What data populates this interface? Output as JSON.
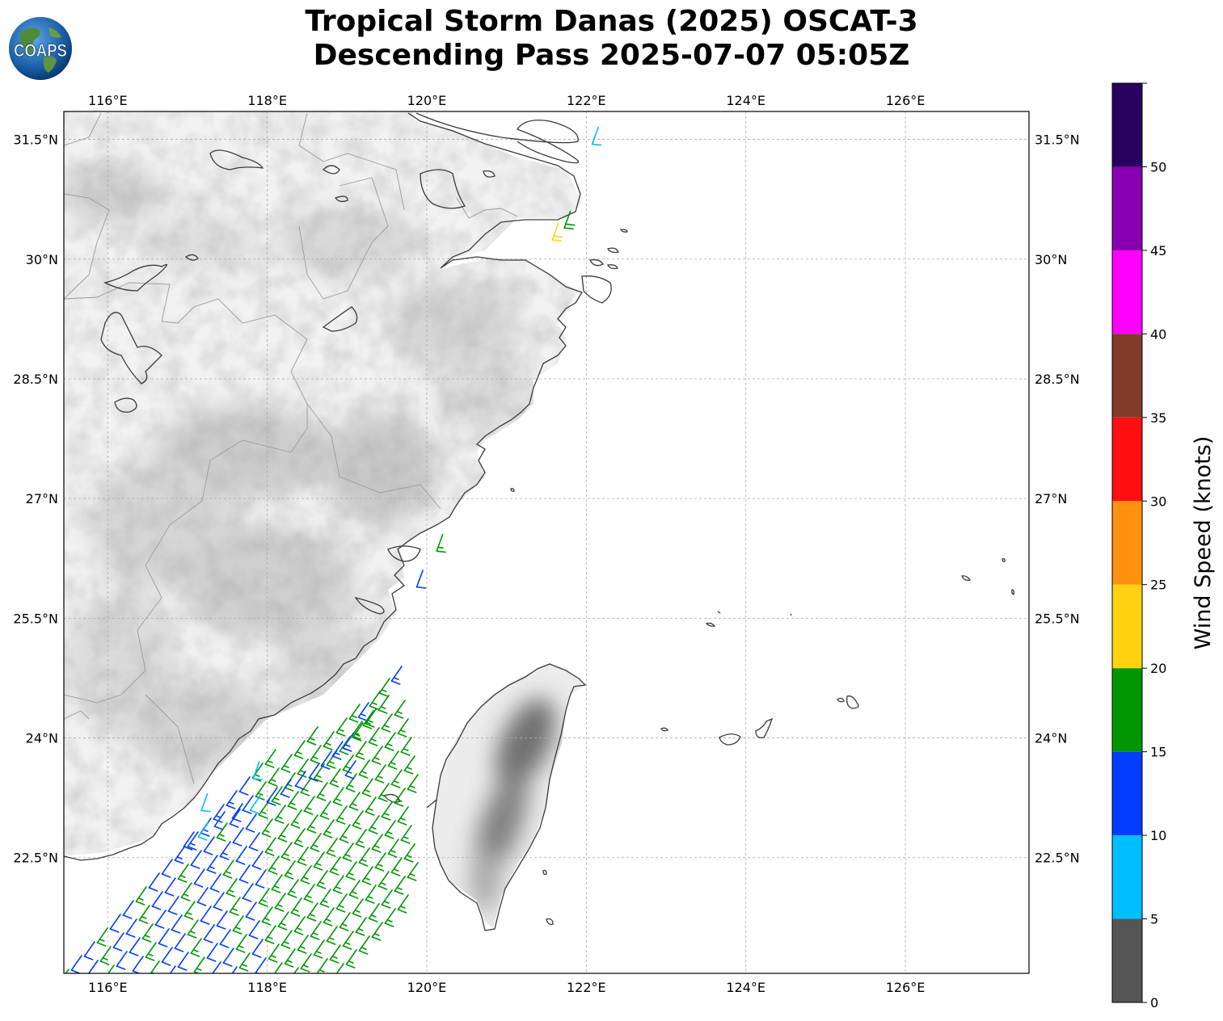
{
  "header": {
    "title_line1": "Tropical Storm Danas (2025) OSCAT-3",
    "title_line2": "Descending Pass 2025-07-07 05:05Z",
    "logo_text": "COAPS"
  },
  "map": {
    "lon_range": [
      115.45,
      127.55
    ],
    "lat_range": [
      21.05,
      31.85
    ],
    "lon_ticks": [
      116,
      118,
      120,
      122,
      124,
      126
    ],
    "lon_tick_labels": [
      "116°E",
      "118°E",
      "120°E",
      "122°E",
      "124°E",
      "126°E"
    ],
    "lat_ticks": [
      22.5,
      24,
      25.5,
      27,
      28.5,
      30,
      31.5
    ],
    "lat_tick_labels": [
      "22.5°N",
      "24°N",
      "25.5°N",
      "27°N",
      "28.5°N",
      "30°N",
      "31.5°N"
    ],
    "gridlines": true,
    "background": "grayscale terrain",
    "features": [
      "coastline",
      "province borders",
      "Taiwan",
      "islands"
    ]
  },
  "colorbar": {
    "label": "Wind Speed (knots)",
    "ticks": [
      "0",
      "5",
      "10",
      "15",
      "20",
      "25",
      "30",
      "35",
      "40",
      "45",
      "50"
    ],
    "bins": [
      {
        "min": 0,
        "max": 5,
        "color": "#555555"
      },
      {
        "min": 5,
        "max": 10,
        "color": "#00bfff"
      },
      {
        "min": 10,
        "max": 15,
        "color": "#003dff"
      },
      {
        "min": 15,
        "max": 20,
        "color": "#009700"
      },
      {
        "min": 20,
        "max": 25,
        "color": "#ffd20f"
      },
      {
        "min": 25,
        "max": 30,
        "color": "#ff910f"
      },
      {
        "min": 30,
        "max": 35,
        "color": "#ff0f0f"
      },
      {
        "min": 35,
        "max": 40,
        "color": "#823a29"
      },
      {
        "min": 40,
        "max": 45,
        "color": "#ff00ff"
      },
      {
        "min": 45,
        "max": 50,
        "color": "#8700b2"
      },
      {
        "min": 50,
        "max": 55,
        "color": "#2a0060"
      }
    ]
  },
  "wind_barbs": {
    "swath_south": {
      "lon_min": 115.45,
      "lat_min": 21.05,
      "description_color_mix": [
        "#003dff",
        "#009700",
        "#00bfff"
      ]
    },
    "samples": [
      {
        "lon": 122.15,
        "lat": 31.65,
        "speed": 8
      },
      {
        "lon": 121.8,
        "lat": 30.6,
        "speed": 18
      },
      {
        "lon": 121.65,
        "lat": 30.45,
        "speed": 22
      },
      {
        "lon": 120.2,
        "lat": 26.55,
        "speed": 17
      },
      {
        "lon": 119.95,
        "lat": 26.1,
        "speed": 12
      },
      {
        "lon": 117.25,
        "lat": 23.3,
        "speed": 8
      },
      {
        "lon": 117.9,
        "lat": 23.7,
        "speed": 8
      }
    ]
  }
}
